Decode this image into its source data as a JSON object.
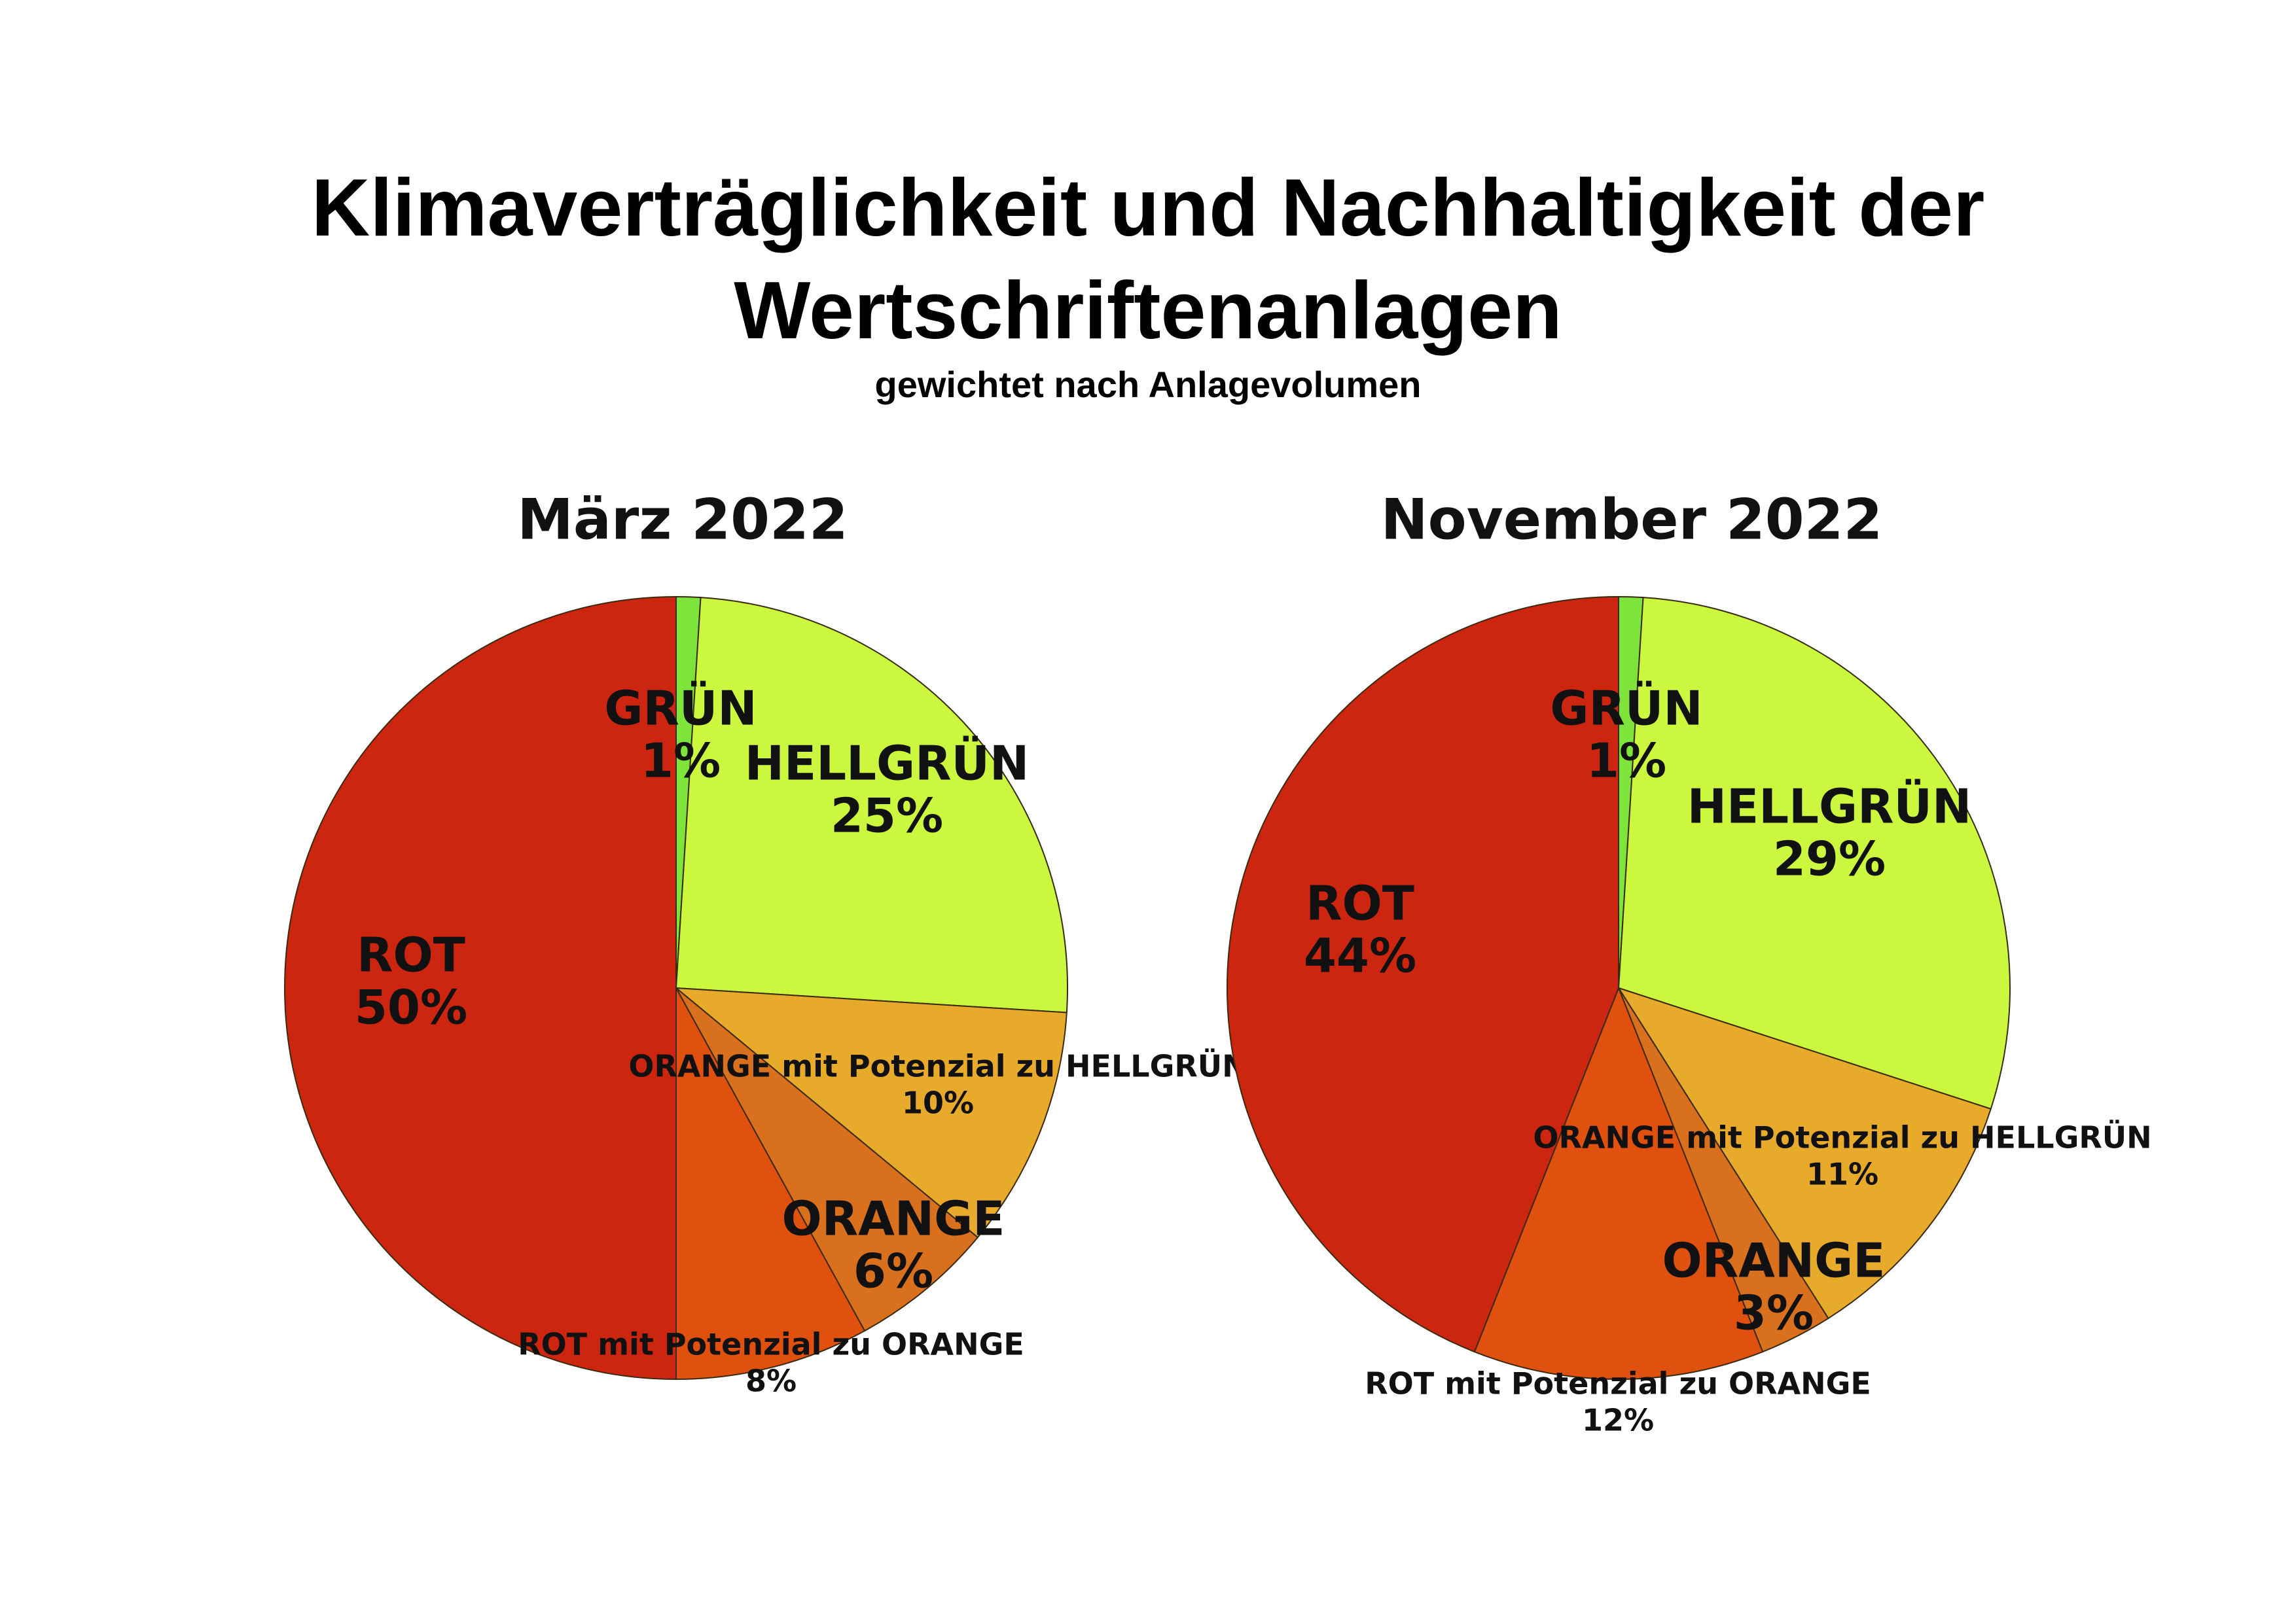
{
  "title_line1": "Klimaverträglichkeit und Nachhaltigkeit der",
  "title_line2": "Wertschriftenanlagen",
  "subtitle": "gewichtet nach Anlagevolumen",
  "chart_data": [
    {
      "type": "pie",
      "title": "März 2022",
      "start": "12 o'clock",
      "direction": "clockwise",
      "slices": [
        {
          "label": "GRÜN",
          "value": 1,
          "value_label": "1%",
          "color": "#7ee33a"
        },
        {
          "label": "HELLGRÜN",
          "value": 25,
          "value_label": "25%",
          "color": "#cbf73e"
        },
        {
          "label": "ORANGE mit Potenzial zu HELLGRÜN",
          "value": 10,
          "value_label": "10%",
          "color": "#e8aa2a"
        },
        {
          "label": "ORANGE",
          "value": 6,
          "value_label": "6%",
          "color": "#d8701e"
        },
        {
          "label": "ROT mit Potenzial zu ORANGE",
          "value": 8,
          "value_label": "8%",
          "color": "#e0500f"
        },
        {
          "label": "ROT",
          "value": 50,
          "value_label": "50%",
          "color": "#cc2611"
        }
      ]
    },
    {
      "type": "pie",
      "title": "November 2022",
      "start": "12 o'clock",
      "direction": "clockwise",
      "slices": [
        {
          "label": "GRÜN",
          "value": 1,
          "value_label": "1%",
          "color": "#7ee33a"
        },
        {
          "label": "HELLGRÜN",
          "value": 29,
          "value_label": "29%",
          "color": "#cbf73e"
        },
        {
          "label": "ORANGE mit Potenzial zu HELLGRÜN",
          "value": 11,
          "value_label": "11%",
          "color": "#e8aa2a"
        },
        {
          "label": "ORANGE",
          "value": 3,
          "value_label": "3%",
          "color": "#d8701e"
        },
        {
          "label": "ROT mit Potenzial zu ORANGE",
          "value": 12,
          "value_label": "12%",
          "color": "#e0500f"
        },
        {
          "label": "ROT",
          "value": 44,
          "value_label": "44%",
          "color": "#cc2611"
        }
      ]
    }
  ]
}
